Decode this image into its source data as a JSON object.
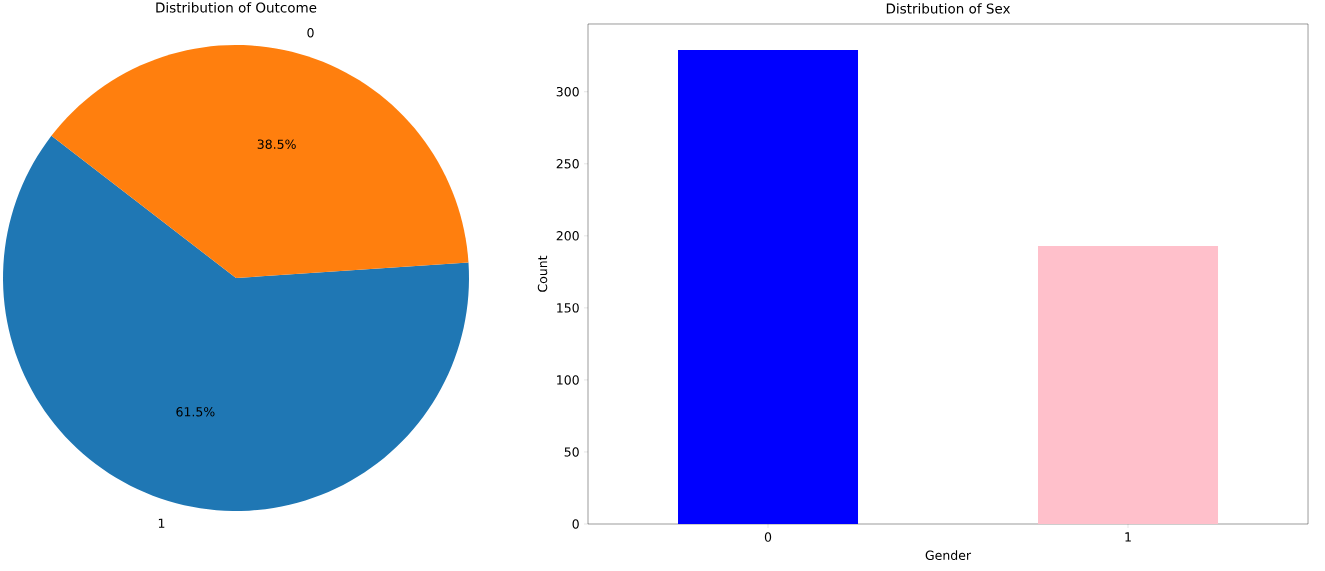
{
  "chart_data": [
    {
      "type": "pie",
      "title": "Distribution of Outcome",
      "categories": [
        "1",
        "0"
      ],
      "values": [
        61.5,
        38.5
      ],
      "colors": [
        "#1f77b4",
        "#ff7f0e"
      ],
      "value_labels": [
        "61.5%",
        "38.5%"
      ]
    },
    {
      "type": "bar",
      "title": "Distribution of Sex",
      "xlabel": "Gender",
      "ylabel": "Count",
      "categories": [
        "0",
        "1"
      ],
      "values": [
        329,
        193
      ],
      "colors": [
        "#0000ff",
        "#ffc0cb"
      ],
      "ylim": [
        0,
        347
      ],
      "yticks": [
        0,
        50,
        100,
        150,
        200,
        250,
        300
      ]
    }
  ]
}
